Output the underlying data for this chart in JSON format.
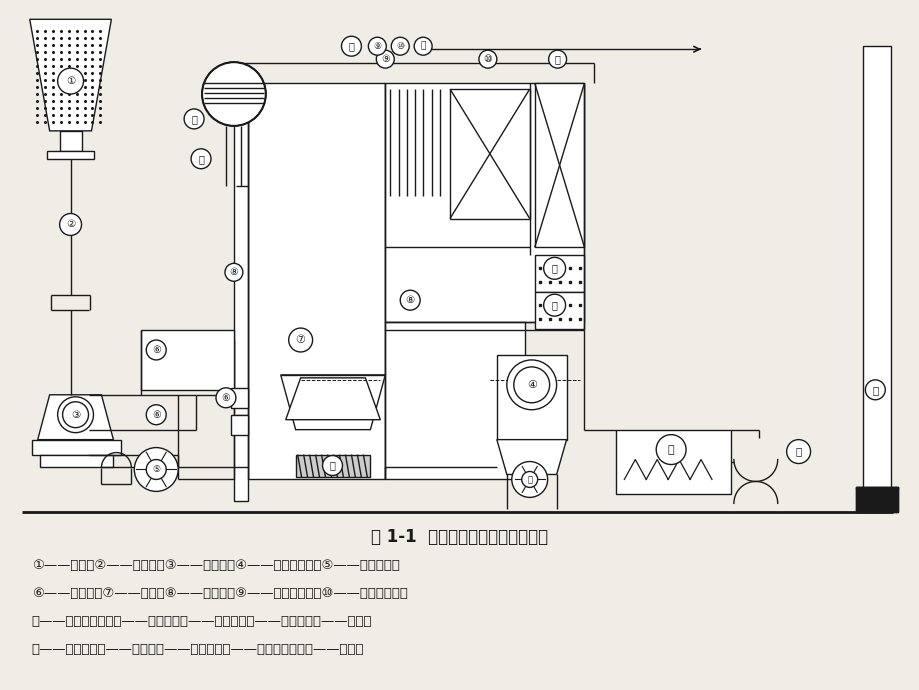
{
  "title": "图 1-1  锅炉及其辅助设备系统简图",
  "legend_lines": [
    "①——煤斗；②——给煤机；③——磨煤机；④——空气预热器；⑤——排粉风机；",
    "⑥——燃烧器；⑦——炉膛；⑧——水冷壁；⑨——屏式过热器；⑩——高温过热器；",
    "⑪——低温过热器；⑫——省煤器；⑬——除尘器；⑭——吸风机；⑮——烟囱；",
    "⑯——送风机；⑰——锅筒；⑱——下降管；⑲——顶棚过热器；⑳——排渣室"
  ],
  "bg_color": "#f0ede6",
  "text_color": "#1a1a1a",
  "title_fontsize": 12,
  "legend_fontsize": 9.5
}
